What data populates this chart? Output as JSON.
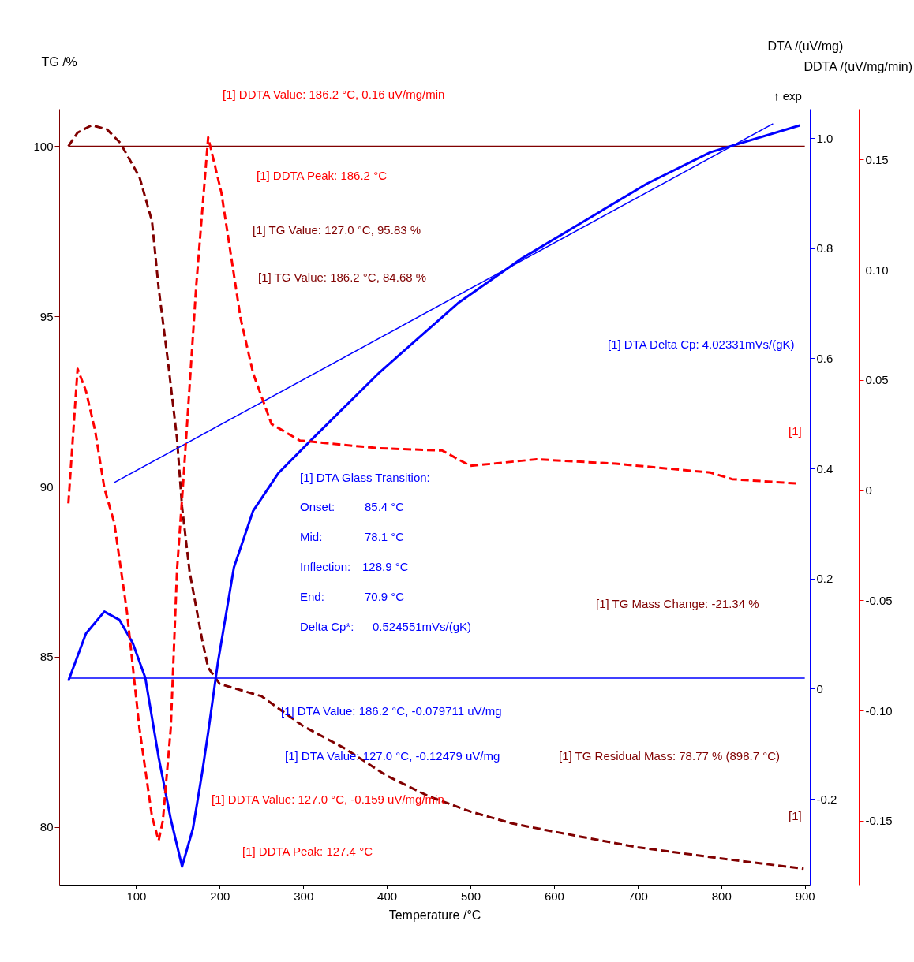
{
  "chart_data": {
    "type": "line",
    "xlabel": "Temperature /°C",
    "ylabel": "TG /%",
    "y2label": "DTA /(uV/mg)",
    "y3label": "DDTA /(uV/mg/min)",
    "xlim": [
      8,
      906
    ],
    "xticks": [
      100,
      200,
      300,
      400,
      500,
      600,
      700,
      800,
      900
    ],
    "ylim": [
      78.3,
      101.1
    ],
    "yticks": [
      80,
      85,
      90,
      95,
      100
    ],
    "y2lim": [
      -0.356,
      1.053
    ],
    "y2ticks": [
      -0.2,
      0,
      0.2,
      0.4,
      0.6,
      0.8,
      {
        "value": 1,
        "label": "1.0"
      }
    ],
    "y3lim": [
      -0.179,
      0.173
    ],
    "y3ticks": [
      -0.15,
      {
        "value": -0.1,
        "label": "-0.10"
      },
      -0.05,
      0,
      0.05,
      {
        "value": 0.1,
        "label": "0.10"
      },
      0.15
    ],
    "grid": false,
    "marker": "none",
    "series": [
      {
        "color": "#800000",
        "axis": "y",
        "line_style": "dashed",
        "x": [
          19,
          30,
          47,
          65,
          81,
          104,
          119,
          127,
          138,
          149,
          155,
          164,
          179,
          186.2,
          200,
          250,
          300,
          350,
          400,
          450,
          500,
          550,
          600,
          700,
          800,
          898.7
        ],
        "values": [
          100.0,
          100.4,
          100.62,
          100.5,
          100.1,
          99.1,
          97.8,
          95.83,
          93.7,
          91.4,
          89.4,
          87.5,
          85.5,
          84.68,
          84.2,
          83.84,
          82.96,
          82.3,
          81.5,
          80.9,
          80.45,
          80.1,
          79.86,
          79.4,
          79.07,
          78.77
        ]
      },
      {
        "color": "#800000",
        "axis": "y",
        "line_style": "solid",
        "x": [
          19,
          900
        ],
        "values": [
          100,
          100
        ]
      },
      {
        "color": "#0000ff",
        "axis": "y2",
        "line_style": "solid",
        "x": [
          19,
          40,
          62,
          80,
          96,
          111,
          127,
          141.5,
          155,
          168,
          179.2,
          186.2,
          198,
          217,
          240,
          270,
          311,
          391,
          485,
          560,
          636,
          711,
          787,
          894
        ],
        "values": [
          0.014,
          0.1,
          0.14,
          0.125,
          0.083,
          0.02,
          -0.12479,
          -0.237,
          -0.323,
          -0.254,
          -0.151,
          -0.079711,
          0.049,
          0.22,
          0.323,
          0.391,
          0.454,
          0.574,
          0.7,
          0.78,
          0.849,
          0.917,
          0.974,
          1.023
        ]
      },
      {
        "color": "#0000ff",
        "axis": "y2",
        "line_style": "solid",
        "x": [
          19,
          900
        ],
        "values": [
          0.019,
          0.019
        ]
      },
      {
        "color": "#0000ff",
        "axis": "y2",
        "line_style": "solid",
        "x": [
          73.6,
          862
        ],
        "values": [
          0.374,
          1.026
        ]
      },
      {
        "color": "#ff0000",
        "axis": "y3",
        "line_style": "dashed",
        "x": [
          19,
          30,
          40,
          51,
          62,
          74,
          89,
          104,
          119,
          127,
          132,
          141.5,
          149,
          157,
          172,
          186.2,
          202,
          225,
          240,
          262,
          296,
          391,
          466,
          500,
          579,
          674,
          787,
          813,
          892
        ],
        "values": [
          -0.006,
          0.055,
          0.045,
          0.027,
          0.001,
          -0.015,
          -0.055,
          -0.108,
          -0.148,
          -0.159,
          -0.15,
          -0.108,
          -0.036,
          0.007,
          0.093,
          0.16,
          0.135,
          0.078,
          0.053,
          0.03,
          0.0225,
          0.019,
          0.018,
          0.011,
          0.014,
          0.012,
          0.008,
          0.005,
          0.003
        ]
      }
    ],
    "annotations": [
      "[1] DDTA Value: 186.2 °C, 0.16 uV/mg/min",
      "[1] DDTA Peak: 186.2 °C",
      "[1] TG Value: 127.0 °C, 95.83 %",
      "[1] TG Value: 186.2 °C, 84.68 %",
      "[1] DTA Delta Cp: 4.02331mVs/(gK)",
      "[1] DTA Glass Transition:",
      "Onset:",
      "85.4 °C",
      "Mid:",
      "78.1 °C",
      "Inflection:",
      "128.9 °C",
      "End:",
      "70.9 °C",
      "Delta Cp*:",
      "0.524551mVs/(gK)",
      "[1] TG Mass Change: -21.34 %",
      "[1] DTA Value: 186.2 °C, -0.079711 uV/mg",
      "[1] DTA Value: 127.0 °C, -0.12479 uV/mg",
      "[1] TG Residual Mass: 78.77 % (898.7 °C)",
      "[1] DDTA Value: 127.0 °C, -0.159 uV/mg/min",
      "[1] DDTA Peak: 127.4 °C",
      "↑ exp",
      "[1]",
      "[1]"
    ]
  }
}
